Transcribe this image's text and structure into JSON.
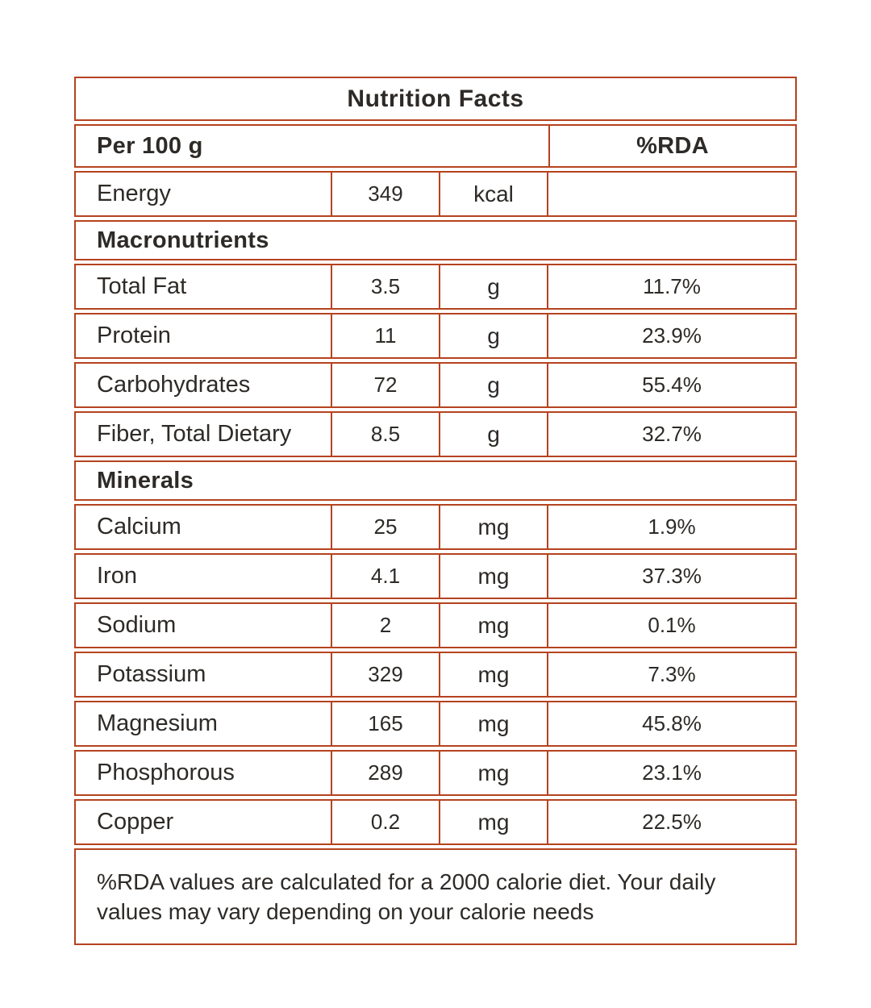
{
  "colors": {
    "border": "#b5431f",
    "text": "#2d2a27",
    "background": "#ffffff"
  },
  "table": {
    "title": "Nutrition Facts",
    "header": {
      "serving": "Per 100 g",
      "rda": "%RDA"
    },
    "energy": {
      "label": "Energy",
      "value": "349",
      "unit": "kcal",
      "rda": ""
    },
    "macro_header": "Macronutrients",
    "macros": [
      {
        "label": "Total Fat",
        "value": "3.5",
        "unit": "g",
        "rda": "11.7%"
      },
      {
        "label": "Protein",
        "value": "11",
        "unit": "g",
        "rda": "23.9%"
      },
      {
        "label": "Carbohydrates",
        "value": "72",
        "unit": "g",
        "rda": "55.4%"
      },
      {
        "label": "Fiber, Total Dietary",
        "value": "8.5",
        "unit": "g",
        "rda": "32.7%"
      }
    ],
    "minerals_header": "Minerals",
    "minerals": [
      {
        "label": "Calcium",
        "value": "25",
        "unit": "mg",
        "rda": "1.9%"
      },
      {
        "label": "Iron",
        "value": "4.1",
        "unit": "mg",
        "rda": "37.3%"
      },
      {
        "label": "Sodium",
        "value": "2",
        "unit": "mg",
        "rda": "0.1%"
      },
      {
        "label": "Potassium",
        "value": "329",
        "unit": "mg",
        "rda": "7.3%"
      },
      {
        "label": "Magnesium",
        "value": "165",
        "unit": "mg",
        "rda": "45.8%"
      },
      {
        "label": "Phosphorous",
        "value": "289",
        "unit": "mg",
        "rda": "23.1%"
      },
      {
        "label": "Copper",
        "value": "0.2",
        "unit": "mg",
        "rda": "22.5%"
      }
    ],
    "footnote": "%RDA values are calculated for a 2000 calorie diet. Your daily values may vary depending on your calorie needs"
  }
}
